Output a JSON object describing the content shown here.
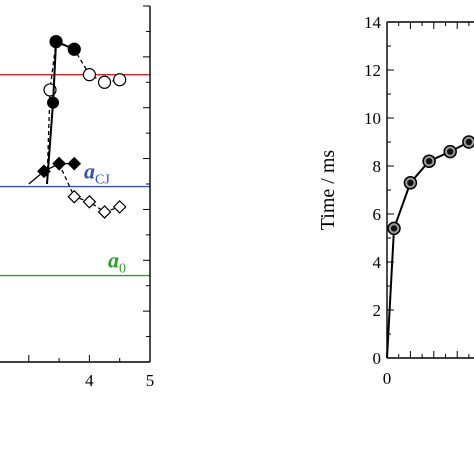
{
  "chart_data": [
    {
      "type": "line",
      "xlim": [
        0,
        5
      ],
      "x_ticks": [
        {
          "value": 4,
          "label": "4"
        },
        {
          "value": 5,
          "label": "5"
        }
      ],
      "ylim": [
        0,
        14
      ],
      "series": [
        {
          "marker": "open-circle",
          "x": [
            3.35,
            3.45,
            3.75,
            4.0,
            4.25,
            4.5
          ],
          "y": [
            10.7,
            12.6,
            12.3,
            11.3,
            11.0,
            11.1
          ]
        },
        {
          "marker": "filled-circle",
          "x": [
            3.4,
            3.45,
            3.75
          ],
          "y": [
            10.2,
            12.6,
            12.3
          ]
        },
        {
          "marker": "open-diamond",
          "x": [
            3.5,
            3.75,
            4.0,
            4.25,
            4.5
          ],
          "y": [
            7.8,
            6.5,
            6.3,
            5.9,
            6.1
          ]
        },
        {
          "marker": "filled-diamond",
          "x": [
            3.25,
            3.5,
            3.75
          ],
          "y": [
            7.5,
            7.8,
            7.8
          ]
        }
      ],
      "reference_lines": [
        {
          "label": "a",
          "subscript": "CJ",
          "y": 6.9,
          "color": "#3a4fb8"
        },
        {
          "label": "a",
          "subscript": "0",
          "y": 3.4,
          "color": "#2ca02c"
        },
        {
          "y": 11.3,
          "color": "#d62728"
        }
      ]
    },
    {
      "type": "line",
      "ylabel": "Time / ms",
      "xlim": [
        0,
        10
      ],
      "ylim": [
        0,
        14
      ],
      "x_ticks": [
        {
          "value": 0,
          "label": "0"
        }
      ],
      "y_ticks": [
        {
          "value": 0,
          "label": "0"
        },
        {
          "value": 2,
          "label": "2"
        },
        {
          "value": 4,
          "label": "4"
        },
        {
          "value": 6,
          "label": "6"
        },
        {
          "value": 8,
          "label": "8"
        },
        {
          "value": 10,
          "label": "10"
        },
        {
          "value": 12,
          "label": "12"
        },
        {
          "value": 14,
          "label": "14"
        }
      ],
      "series": [
        {
          "marker": "filled-circle-gray",
          "x": [
            0.0,
            0.3,
            1.0,
            1.8,
            2.7,
            3.5
          ],
          "y": [
            0.0,
            5.4,
            7.3,
            8.2,
            8.6,
            9.0
          ]
        }
      ]
    }
  ]
}
